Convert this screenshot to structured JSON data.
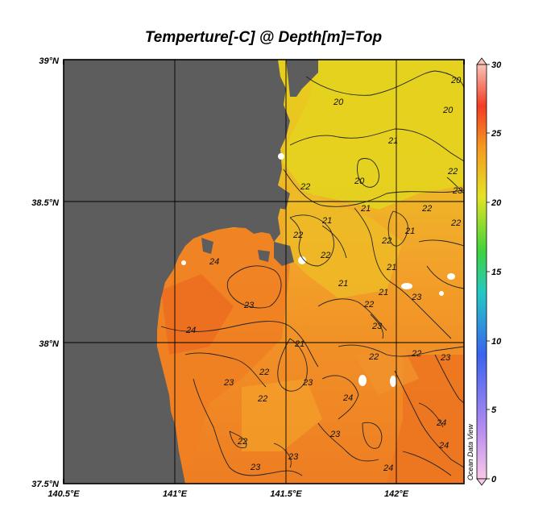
{
  "title": "Temperture[-C] @ Depth[m]=Top",
  "lat_ticks": [
    "39°N",
    "38.5°N",
    "38°N",
    "37.5°N"
  ],
  "lon_ticks": [
    "140.5°E",
    "141°E",
    "141.5°E",
    "142°E"
  ],
  "contour_labels": [
    "20",
    "20",
    "20",
    "21",
    "22",
    "22",
    "23",
    "22",
    "21",
    "21",
    "20",
    "22",
    "22",
    "21",
    "21",
    "22",
    "21",
    "22",
    "24",
    "23",
    "24",
    "23",
    "21",
    "23",
    "22",
    "22",
    "22",
    "23",
    "22",
    "24",
    "23",
    "24",
    "24",
    "22",
    "23",
    "24",
    "23",
    "23",
    "22",
    "23",
    "21"
  ],
  "colorbar": {
    "ticks": [
      "30",
      "25",
      "20",
      "15",
      "10",
      "5",
      "0"
    ],
    "colors": [
      "#f9b3d8",
      "#b58cf0",
      "#2f5ff2",
      "#23c7c9",
      "#3ed33a",
      "#e7e62a",
      "#f68a1e",
      "#f23a24",
      "#f7c0b5"
    ]
  },
  "credit": "Ocean Data View",
  "colors": {
    "land": "#5d5d5d",
    "ocean_warm": "#f07a22",
    "ocean_mid": "#f3a52b",
    "ocean_cool": "#e8d21e"
  }
}
